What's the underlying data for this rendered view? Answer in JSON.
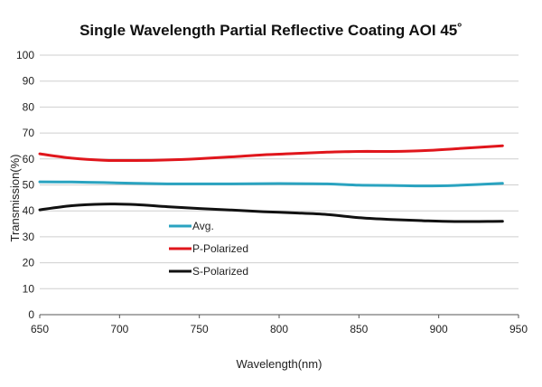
{
  "chart_data": {
    "type": "line",
    "title": "Single Wavelength Partial Reflective Coating AOI 45˚",
    "xlabel": "Wavelength(nm)",
    "ylabel": "Transmission(%)",
    "xlim": [
      650,
      950
    ],
    "ylim": [
      0,
      100
    ],
    "xticks": [
      650,
      700,
      750,
      800,
      850,
      900,
      950
    ],
    "yticks": [
      0,
      10,
      20,
      30,
      40,
      50,
      60,
      70,
      80,
      90,
      100
    ],
    "grid": "horizontal",
    "legend_position": "inside-left",
    "x": [
      650,
      670,
      690,
      710,
      730,
      750,
      770,
      790,
      810,
      830,
      850,
      870,
      890,
      910,
      940
    ],
    "series": [
      {
        "name": "Avg.",
        "color": "#2aa3c0",
        "values": [
          51.2,
          51.1,
          50.9,
          50.6,
          50.4,
          50.4,
          50.4,
          50.5,
          50.5,
          50.4,
          49.9,
          49.8,
          49.6,
          49.8,
          50.6
        ]
      },
      {
        "name": "P-Polarized",
        "color": "#e0161c",
        "values": [
          62.0,
          60.3,
          59.5,
          59.4,
          59.6,
          60.1,
          60.8,
          61.6,
          62.1,
          62.6,
          62.9,
          62.9,
          63.2,
          63.9,
          65.1
        ]
      },
      {
        "name": "S-Polarized",
        "color": "#111111",
        "values": [
          40.4,
          42.0,
          42.6,
          42.4,
          41.6,
          40.9,
          40.3,
          39.7,
          39.2,
          38.6,
          37.4,
          36.7,
          36.2,
          35.9,
          36.0
        ]
      }
    ]
  }
}
